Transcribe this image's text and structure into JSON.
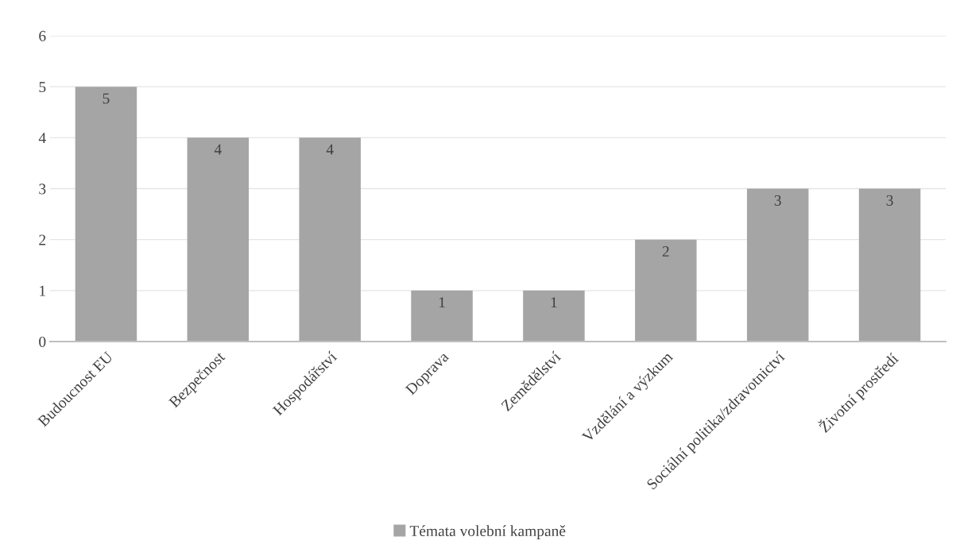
{
  "chart_data": {
    "type": "bar",
    "categories": [
      "Budoucnost EU",
      "Bezpečnost",
      "Hospodářství",
      "Doprava",
      "Zemědělství",
      "Vzdělání a výzkum",
      "Sociální politika/zdravotnictví",
      "Životní prostředí"
    ],
    "series": [
      {
        "name": "Témata volební kampaně",
        "color": "#a5a5a5",
        "values": [
          5,
          4,
          4,
          1,
          1,
          2,
          3,
          3
        ]
      }
    ],
    "ylim": [
      0,
      6
    ],
    "yticks": [
      0,
      1,
      2,
      3,
      4,
      5,
      6
    ],
    "grid": "y",
    "legend": "bottom",
    "data_labels": true
  }
}
